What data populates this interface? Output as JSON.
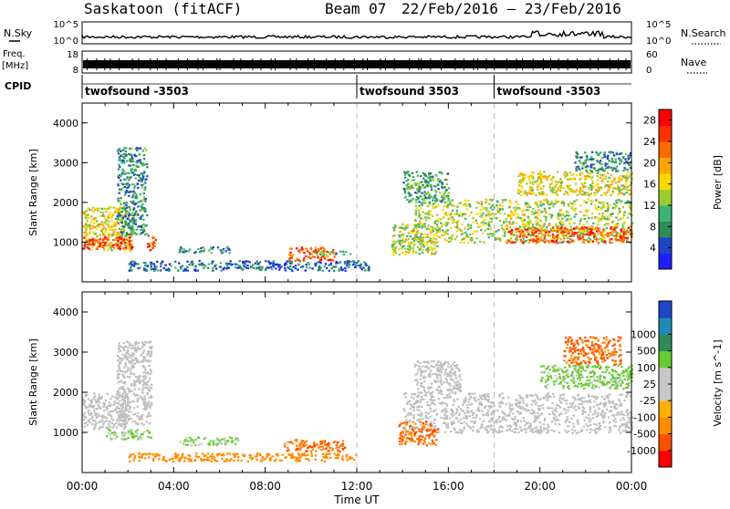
{
  "header": {
    "station": "Saskatoon (fitACF)",
    "beam": "Beam 07",
    "date_range": "22/Feb/2016 – 23/Feb/2016"
  },
  "side_labels": {
    "nsky": "N.Sky",
    "nsearch": "N.Search",
    "freq": "Freq.",
    "freq_unit": "[MHz]",
    "nave": "Nave",
    "cpid": "CPID"
  },
  "colors": {
    "power_scale": [
      "#1e1eff",
      "#1e46c8",
      "#2e8b57",
      "#3cb371",
      "#9acd32",
      "#ffd700",
      "#ffa500",
      "#ff6a00",
      "#ff3000",
      "#ff0000"
    ],
    "velocity_scale": [
      "#ff0000",
      "#ff5000",
      "#ff8c00",
      "#ffb000",
      "#c8c8c8",
      "#c8c8c8",
      "#66cc33",
      "#2e8b57",
      "#1e8bb4",
      "#1e46c8"
    ],
    "ground_scatter": "#c0c0c0",
    "trace": "#000000"
  },
  "chart_data": [
    {
      "type": "line",
      "name": "noise-panel",
      "series": [
        {
          "name": "N.Sky",
          "style": "solid"
        },
        {
          "name": "N.Search",
          "style": "dotted"
        }
      ],
      "x_range": [
        "00:00",
        "24:00"
      ],
      "left_ticks": [
        "10^5",
        "10^0"
      ],
      "right_ticks": [
        "10^5",
        "10^0"
      ]
    },
    {
      "type": "line",
      "name": "freq-nave-panel",
      "series": [
        {
          "name": "Freq.",
          "style": "solid"
        },
        {
          "name": "Nave",
          "style": "dotted"
        }
      ],
      "left_ticks": [
        "18",
        "8"
      ],
      "right_ticks": [
        "60",
        "0"
      ]
    },
    {
      "type": "table",
      "name": "cpid",
      "segments": [
        {
          "start_h": 0,
          "label": "twofsound -3503"
        },
        {
          "start_h": 12,
          "label": "twofsound 3503"
        },
        {
          "start_h": 18,
          "label": "twofsound -3503"
        }
      ]
    },
    {
      "type": "heatmap",
      "name": "power-panel",
      "ylabel": "Slant Range [km]",
      "yticks": [
        "1000",
        "2000",
        "3000",
        "4000"
      ],
      "ylim": [
        0,
        4500
      ],
      "xlim": [
        0,
        24
      ],
      "colorbar": {
        "label": "Power [dB]",
        "ticks": [
          "4",
          "8",
          "12",
          "16",
          "20",
          "24",
          "28"
        ],
        "range": [
          0,
          30
        ]
      },
      "scatter_regions": [
        {
          "t0": 0.0,
          "t1": 2.2,
          "r0": 800,
          "r1": 1900,
          "v": 16
        },
        {
          "t0": 0.0,
          "t1": 2.2,
          "r0": 850,
          "r1": 1150,
          "v": 26
        },
        {
          "t0": 1.5,
          "t1": 2.8,
          "r0": 1200,
          "r1": 3400,
          "v": 8
        },
        {
          "t0": 2.8,
          "t1": 3.2,
          "r0": 800,
          "r1": 1200,
          "v": 24
        },
        {
          "t0": 4.2,
          "t1": 6.5,
          "r0": 750,
          "r1": 900,
          "v": 8
        },
        {
          "t0": 9.0,
          "t1": 11.0,
          "r0": 550,
          "r1": 900,
          "v": 24
        },
        {
          "t0": 10.0,
          "t1": 11.8,
          "r0": 700,
          "r1": 800,
          "v": 10
        },
        {
          "t0": 2.0,
          "t1": 12.5,
          "r0": 300,
          "r1": 550,
          "v": 6
        },
        {
          "t0": 13.5,
          "t1": 15.5,
          "r0": 700,
          "r1": 1500,
          "v": 14
        },
        {
          "t0": 14.0,
          "t1": 16.0,
          "r0": 2000,
          "r1": 2800,
          "v": 10
        },
        {
          "t0": 14.5,
          "t1": 24.0,
          "r0": 1000,
          "r1": 2100,
          "v": 14
        },
        {
          "t0": 18.5,
          "t1": 24.0,
          "r0": 1000,
          "r1": 1400,
          "v": 24
        },
        {
          "t0": 19.0,
          "t1": 24.0,
          "r0": 2200,
          "r1": 2800,
          "v": 16
        },
        {
          "t0": 21.5,
          "t1": 24.0,
          "r0": 2800,
          "r1": 3300,
          "v": 8
        }
      ]
    },
    {
      "type": "heatmap",
      "name": "velocity-panel",
      "ylabel": "Slant Range [km]",
      "xlabel": "Time UT",
      "yticks": [
        "1000",
        "2000",
        "3000",
        "4000"
      ],
      "ylim": [
        0,
        4500
      ],
      "xlim": [
        0,
        24
      ],
      "xticks": [
        "00:00",
        "04:00",
        "08:00",
        "12:00",
        "16:00",
        "20:00",
        "00:00"
      ],
      "colorbar": {
        "label": "Velocity [m s^-1]",
        "ticks": [
          "-1000",
          "-500",
          "-100",
          "-25",
          "25",
          "100",
          "500",
          "1000"
        ]
      },
      "scatter_regions": [
        {
          "t0": 0.0,
          "t1": 2.0,
          "r0": 1100,
          "r1": 2000,
          "v": "ground"
        },
        {
          "t0": 1.0,
          "t1": 3.0,
          "r0": 850,
          "r1": 1100,
          "v": 100
        },
        {
          "t0": 1.5,
          "t1": 3.0,
          "r0": 1200,
          "r1": 3300,
          "v": "ground"
        },
        {
          "t0": 4.2,
          "t1": 6.8,
          "r0": 700,
          "r1": 900,
          "v": 100
        },
        {
          "t0": 8.8,
          "t1": 11.5,
          "r0": 550,
          "r1": 850,
          "v": -300
        },
        {
          "t0": 2.0,
          "t1": 12.0,
          "r0": 300,
          "r1": 500,
          "v": -200
        },
        {
          "t0": 14.0,
          "t1": 24.0,
          "r0": 1000,
          "r1": 2000,
          "v": "ground"
        },
        {
          "t0": 13.8,
          "t1": 15.5,
          "r0": 700,
          "r1": 1300,
          "v": -300
        },
        {
          "t0": 14.5,
          "t1": 16.5,
          "r0": 2000,
          "r1": 2800,
          "v": "ground"
        },
        {
          "t0": 20.0,
          "t1": 24.0,
          "r0": 2100,
          "r1": 2700,
          "v": 100
        },
        {
          "t0": 21.0,
          "t1": 23.5,
          "r0": 2700,
          "r1": 3400,
          "v": -300
        }
      ]
    }
  ]
}
